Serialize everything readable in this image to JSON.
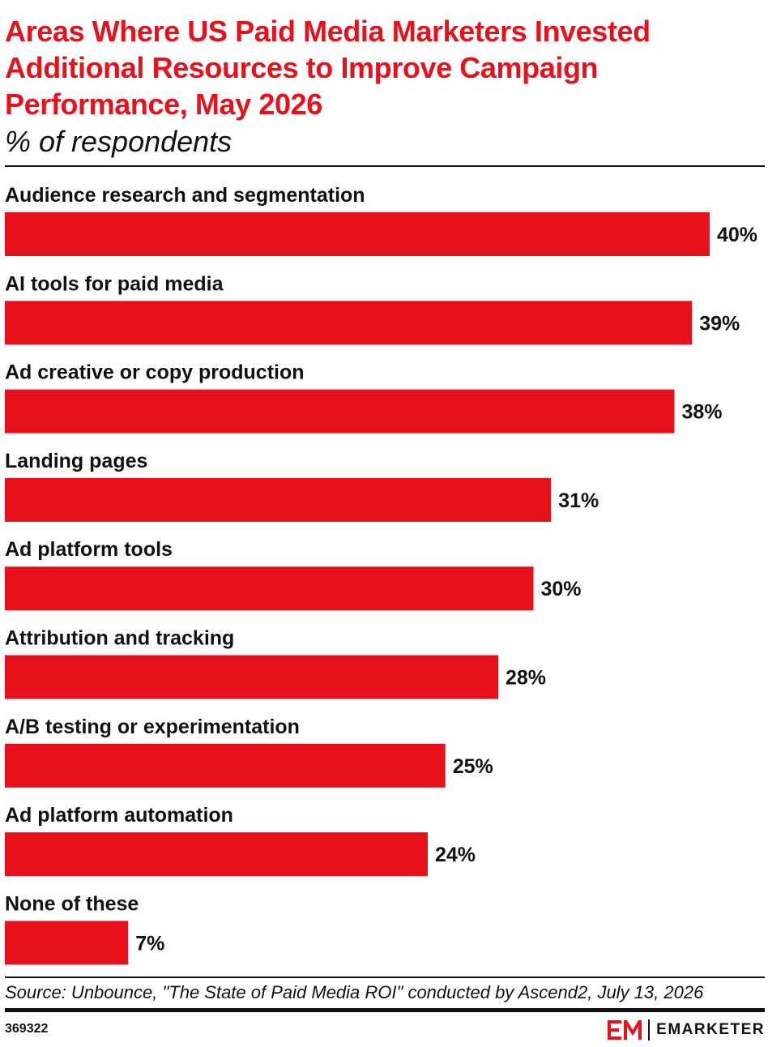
{
  "header": {
    "title": "Areas Where US Paid Media Marketers Invested Additional Resources to Improve Campaign Performance, May 2026",
    "subtitle": "% of respondents"
  },
  "chart_data": {
    "type": "bar",
    "orientation": "horizontal",
    "categories": [
      "Audience research and segmentation",
      "AI tools for paid media",
      "Ad creative or copy production",
      "Landing pages",
      "Ad platform tools",
      "Attribution and tracking",
      "A/B testing or experimentation",
      "Ad platform automation",
      "None of these"
    ],
    "values": [
      40,
      39,
      38,
      31,
      30,
      28,
      25,
      24,
      7
    ],
    "value_labels": [
      "40%",
      "39%",
      "38%",
      "31%",
      "30%",
      "28%",
      "25%",
      "24%",
      "7%"
    ],
    "title": "Areas Where US Paid Media Marketers Invested Additional Resources to Improve Campaign Performance, May 2026",
    "subtitle": "% of respondents",
    "xlim": [
      0,
      40
    ],
    "grid": false,
    "legend": "none",
    "bar_color": "#e8111b"
  },
  "footer": {
    "source": "Source: Unbounce, \"The State of Paid Media ROI\" conducted by Ascend2, July 13, 2026",
    "chart_id": "369322",
    "brand_name": "EMARKETER",
    "brand_color": "#e8111b"
  }
}
